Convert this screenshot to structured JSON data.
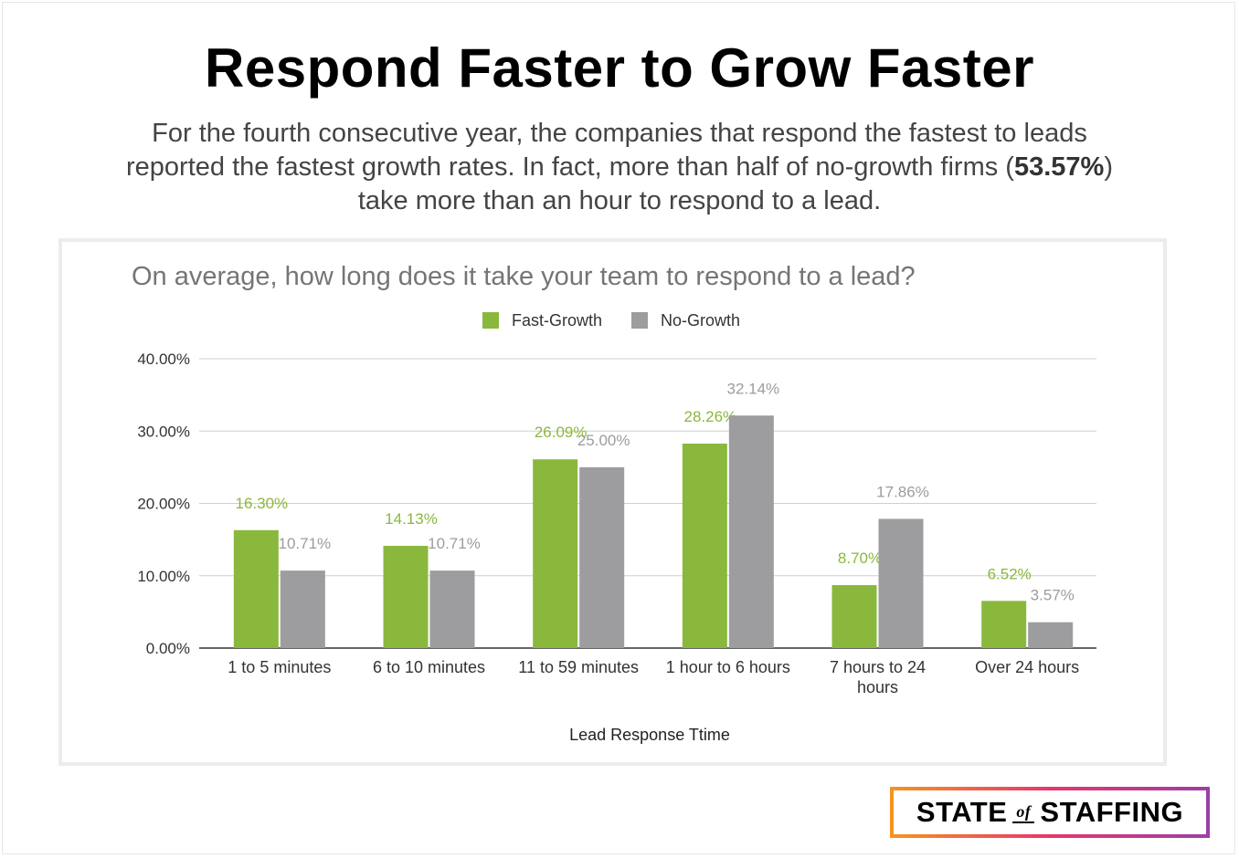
{
  "header": {
    "title": "Respond Faster to Grow Faster",
    "subtitle_before": "For the fourth consecutive year, the companies that respond the fastest to leads reported the fastest growth rates. In fact, more than half of no-growth firms (",
    "subtitle_bold": "53.57%",
    "subtitle_after": ") take more than an hour to respond to a lead."
  },
  "logo": {
    "left": "STATE",
    "middle": "of",
    "right": "STAFFING"
  },
  "chart_data": {
    "type": "bar",
    "title": "On average, how long does it take your team to respond to a lead?",
    "xlabel": "Lead Response Ttime",
    "ylabel": "",
    "ylim": [
      0,
      40
    ],
    "yticks": [
      "0.00%",
      "10.00%",
      "20.00%",
      "30.00%",
      "40.00%"
    ],
    "grid": true,
    "legend": "top-center",
    "categories": [
      "1 to 5 minutes",
      "6 to 10 minutes",
      "11 to 59 minutes",
      "1 hour to 6 hours",
      "7 hours to 24 hours",
      "Over 24 hours"
    ],
    "series": [
      {
        "name": "Fast-Growth",
        "color": "#8ab83d",
        "values": [
          16.3,
          14.13,
          26.09,
          28.26,
          8.7,
          6.52
        ],
        "labels": [
          "16.30%",
          "14.13%",
          "26.09%",
          "28.26%",
          "8.70%",
          "6.52%"
        ]
      },
      {
        "name": "No-Growth",
        "color": "#9d9c9e",
        "values": [
          10.71,
          10.71,
          25.0,
          32.14,
          17.86,
          3.57
        ],
        "labels": [
          "10.71%",
          "10.71%",
          "25.00%",
          "32.14%",
          "17.86%",
          "3.57%"
        ]
      }
    ]
  }
}
